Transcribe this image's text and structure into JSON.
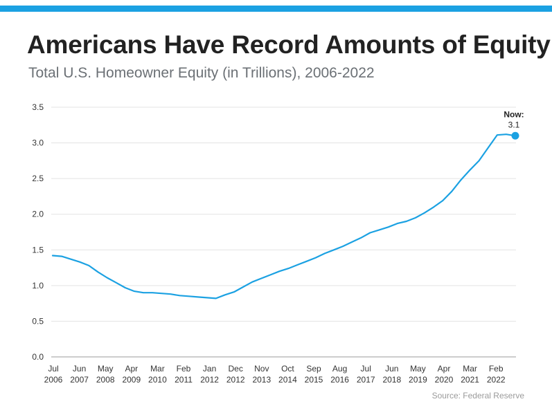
{
  "header": {
    "title": "Americans Have Record Amounts of Equity",
    "subtitle": "Total U.S. Homeowner Equity (in Trillions), 2006-2022"
  },
  "footer": {
    "source": "Source: Federal Reserve"
  },
  "colors": {
    "accent": "#1ba1e2",
    "line": "#1ba1e2"
  },
  "chart_data": {
    "type": "line",
    "title": "Americans Have Record Amounts of Equity",
    "subtitle": "Total U.S. Homeowner Equity (in Trillions), 2006-2022",
    "xlabel": "",
    "ylabel": "",
    "ylim": [
      0,
      3.5
    ],
    "yticks": [
      "0.0",
      "0.5",
      "1.0",
      "1.5",
      "2.0",
      "2.5",
      "3.0",
      "3.5"
    ],
    "xticks": [
      {
        "month": "Jul",
        "year": "2006"
      },
      {
        "month": "Jun",
        "year": "2007"
      },
      {
        "month": "May",
        "year": "2008"
      },
      {
        "month": "Apr",
        "year": "2009"
      },
      {
        "month": "Mar",
        "year": "2010"
      },
      {
        "month": "Feb",
        "year": "2011"
      },
      {
        "month": "Jan",
        "year": "2012"
      },
      {
        "month": "Dec",
        "year": "2012"
      },
      {
        "month": "Nov",
        "year": "2013"
      },
      {
        "month": "Oct",
        "year": "2014"
      },
      {
        "month": "Sep",
        "year": "2015"
      },
      {
        "month": "Aug",
        "year": "2016"
      },
      {
        "month": "Jul",
        "year": "2017"
      },
      {
        "month": "Jun",
        "year": "2018"
      },
      {
        "month": "May",
        "year": "2019"
      },
      {
        "month": "Apr",
        "year": "2020"
      },
      {
        "month": "Mar",
        "year": "2021"
      },
      {
        "month": "Feb",
        "year": "2022"
      }
    ],
    "grid": true,
    "series": [
      {
        "values": [
          1.42,
          1.41,
          1.37,
          1.33,
          1.28,
          1.19,
          1.11,
          1.04,
          0.97,
          0.92,
          0.9,
          0.9,
          0.89,
          0.88,
          0.86,
          0.85,
          0.84,
          0.83,
          0.82,
          0.87,
          0.91,
          0.98,
          1.05,
          1.1,
          1.15,
          1.2,
          1.24,
          1.29,
          1.34,
          1.39,
          1.45,
          1.5,
          1.55,
          1.61,
          1.67,
          1.74,
          1.78,
          1.82,
          1.87,
          1.9,
          1.95,
          2.02,
          2.1,
          2.19,
          2.32,
          2.48,
          2.62,
          2.75,
          2.93,
          3.11,
          3.12,
          3.1
        ]
      }
    ],
    "annotation": {
      "label": "Now:",
      "value": "3.1"
    }
  }
}
